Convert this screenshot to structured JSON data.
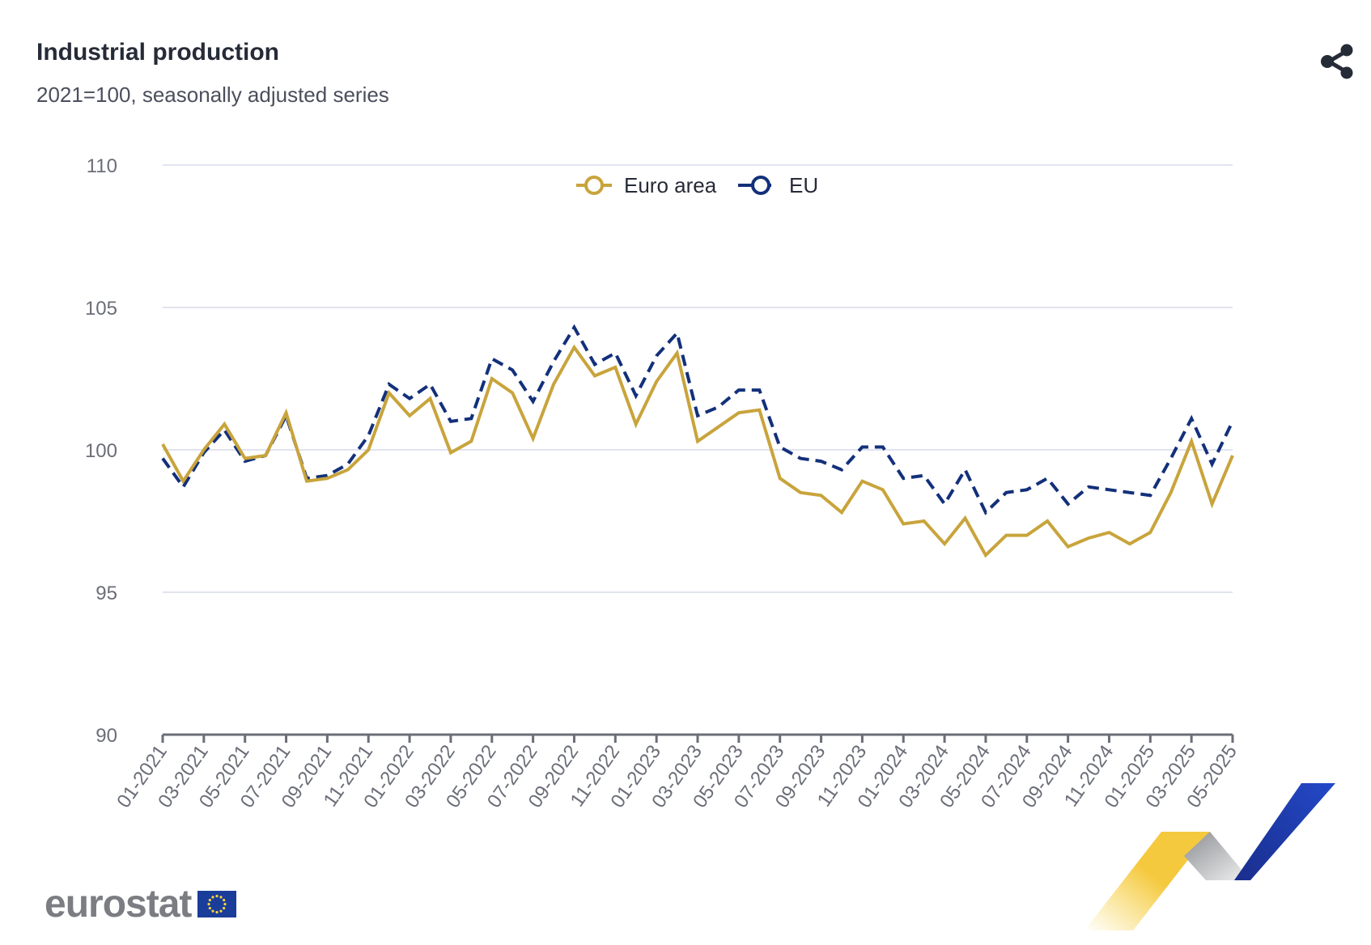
{
  "header": {
    "title": "Industrial production",
    "subtitle": "2021=100, seasonally adjusted series",
    "share_icon": "share-icon"
  },
  "footer": {
    "logo_text": "eurostat",
    "flag_icon": "eu-flag-icon"
  },
  "colors": {
    "euro_area": "#c8a43c",
    "eu": "#13307a",
    "grid": "#e1e3f0",
    "axis": "#6b6e78"
  },
  "chart_data": {
    "type": "line",
    "title": "Industrial production",
    "subtitle": "2021=100, seasonally adjusted series",
    "xlabel": "",
    "ylabel": "",
    "ylim": [
      90,
      110
    ],
    "yticks": [
      90,
      95,
      100,
      105,
      110
    ],
    "grid": true,
    "legend_position": "top-center",
    "x": [
      "01-2021",
      "02-2021",
      "03-2021",
      "04-2021",
      "05-2021",
      "06-2021",
      "07-2021",
      "08-2021",
      "09-2021",
      "10-2021",
      "11-2021",
      "12-2021",
      "01-2022",
      "02-2022",
      "03-2022",
      "04-2022",
      "05-2022",
      "06-2022",
      "07-2022",
      "08-2022",
      "09-2022",
      "10-2022",
      "11-2022",
      "12-2022",
      "01-2023",
      "02-2023",
      "03-2023",
      "04-2023",
      "05-2023",
      "06-2023",
      "07-2023",
      "08-2023",
      "09-2023",
      "10-2023",
      "11-2023",
      "12-2023",
      "01-2024",
      "02-2024",
      "03-2024",
      "04-2024",
      "05-2024",
      "06-2024",
      "07-2024",
      "08-2024",
      "09-2024",
      "10-2024",
      "11-2024",
      "12-2024",
      "01-2025",
      "02-2025",
      "03-2025",
      "04-2025",
      "05-2025"
    ],
    "xtick_labels": [
      "01-2021",
      "03-2021",
      "05-2021",
      "07-2021",
      "09-2021",
      "11-2021",
      "01-2022",
      "03-2022",
      "05-2022",
      "07-2022",
      "09-2022",
      "11-2022",
      "01-2023",
      "03-2023",
      "05-2023",
      "07-2023",
      "09-2023",
      "11-2023",
      "01-2024",
      "03-2024",
      "05-2024",
      "07-2024",
      "09-2024",
      "11-2024",
      "01-2025",
      "03-2025",
      "05-2025"
    ],
    "series": [
      {
        "name": "Euro area",
        "style": "solid",
        "color": "#c8a43c",
        "values": [
          100.2,
          98.9,
          100.0,
          100.9,
          99.7,
          99.8,
          101.3,
          98.9,
          99.0,
          99.3,
          100.0,
          102.0,
          101.2,
          101.8,
          99.9,
          100.3,
          102.5,
          102.0,
          100.4,
          102.3,
          103.6,
          102.6,
          102.9,
          100.9,
          102.4,
          103.4,
          100.3,
          100.8,
          101.3,
          101.4,
          99.0,
          98.5,
          98.4,
          97.8,
          98.9,
          98.6,
          97.4,
          97.5,
          96.7,
          97.6,
          96.3,
          97.0,
          97.0,
          97.5,
          96.6,
          96.9,
          97.1,
          96.7,
          97.1,
          98.5,
          100.3,
          98.1,
          99.8
        ]
      },
      {
        "name": "EU",
        "style": "dashed",
        "color": "#13307a",
        "values": [
          99.7,
          98.7,
          99.9,
          100.7,
          99.6,
          99.8,
          101.2,
          99.0,
          99.1,
          99.5,
          100.5,
          102.3,
          101.8,
          102.3,
          101.0,
          101.1,
          103.2,
          102.8,
          101.7,
          103.1,
          104.3,
          103.0,
          103.4,
          101.9,
          103.3,
          104.1,
          101.2,
          101.5,
          102.1,
          102.1,
          100.1,
          99.7,
          99.6,
          99.3,
          100.1,
          100.1,
          99.0,
          99.1,
          98.1,
          99.3,
          97.8,
          98.5,
          98.6,
          99.0,
          98.1,
          98.7,
          98.6,
          98.5,
          98.4,
          99.7,
          101.1,
          99.5,
          101.0
        ]
      }
    ]
  }
}
